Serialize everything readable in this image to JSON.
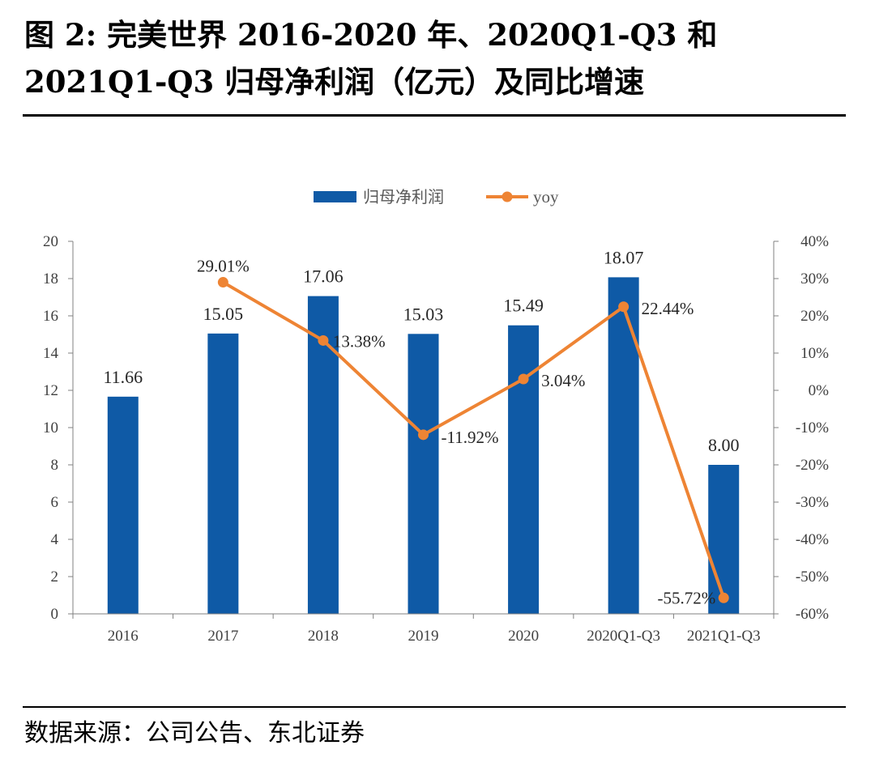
{
  "header": {
    "title": "图 2: 完美世界 2016-2020 年、2020Q1-Q3 和 2021Q1-Q3 归母净利润（亿元）及同比增速"
  },
  "footer": {
    "source": "数据来源：公司公告、东北证券"
  },
  "colors": {
    "bar": "#0f5aa6",
    "line": "#ee8434",
    "axis": "#808080"
  },
  "chart_data": {
    "type": "bar",
    "categories": [
      "2016",
      "2017",
      "2018",
      "2019",
      "2020",
      "2020Q1-Q3",
      "2021Q1-Q3"
    ],
    "series": [
      {
        "name": "归母净利润",
        "kind": "bar",
        "axis": "left",
        "values": [
          11.66,
          15.05,
          17.06,
          15.03,
          15.49,
          18.07,
          8.0
        ],
        "labels": [
          "11.66",
          "15.05",
          "17.06",
          "15.03",
          "15.49",
          "18.07",
          "8.00"
        ]
      },
      {
        "name": "yoy",
        "kind": "line",
        "axis": "right",
        "values": [
          null,
          29.01,
          13.38,
          -11.92,
          3.04,
          22.44,
          -55.72
        ],
        "labels": [
          "",
          "29.01%",
          "13.38%",
          "-11.92%",
          "3.04%",
          "22.44%",
          "-55.72%"
        ]
      }
    ],
    "ylim": [
      0,
      20
    ],
    "y_ticks": [
      "0",
      "2",
      "4",
      "6",
      "8",
      "10",
      "12",
      "14",
      "16",
      "18",
      "20"
    ],
    "y2lim": [
      -60,
      40
    ],
    "y2_ticks": [
      "-60%",
      "-50%",
      "-40%",
      "-30%",
      "-20%",
      "-10%",
      "0%",
      "10%",
      "20%",
      "30%",
      "40%"
    ],
    "legend": [
      "归母净利润",
      "yoy"
    ],
    "legend_position": "top-center",
    "grid": false,
    "title": "",
    "xlabel": "",
    "ylabel": ""
  }
}
